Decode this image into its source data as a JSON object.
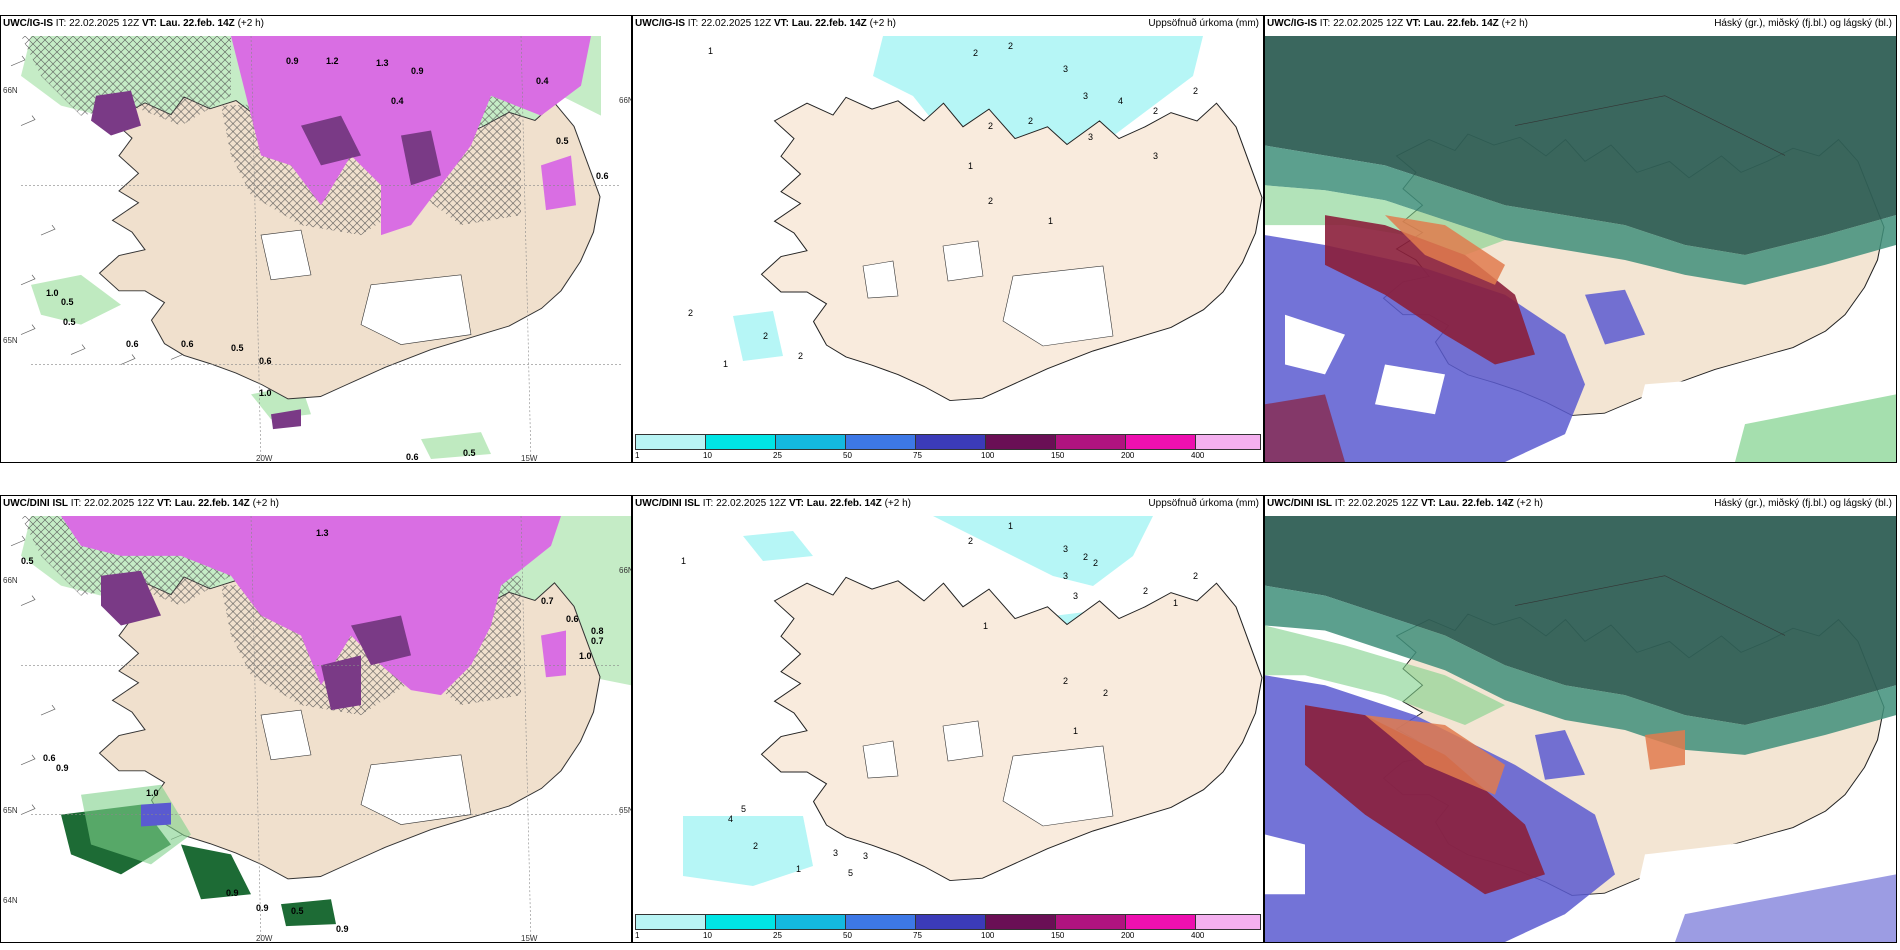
{
  "colors": {
    "land": "#f3e5d3",
    "land_precip": "#efd9c5",
    "purple": "#d96ee3",
    "dark_purple": "#7a3a86",
    "green_light": "#bfeac0",
    "green_mid": "#7fd18b",
    "green_dark": "#1d6b35",
    "cyan": "#b6f6f6",
    "teal_dark": "#2f5f55",
    "teal_mid": "#3f8f7a",
    "blue": "#5a5ad0",
    "red": "#8b1f3b",
    "orange": "#e07b4e"
  },
  "panels": [
    {
      "model": "UWC/IG-IS",
      "it": "IT: 22.02.2025 12Z",
      "vt_label": "VT:",
      "vt": "Lau. 22.feb. 14Z",
      "offset": "(+2 h)",
      "right_title": ""
    },
    {
      "model": "UWC/IG-IS",
      "it": "IT: 22.02.2025 12Z",
      "vt_label": "VT:",
      "vt": "Lau. 22.feb. 14Z",
      "offset": "(+2 h)",
      "right_title": "Uppsöfnuð úrkoma (mm)"
    },
    {
      "model": "UWC/IG-IS",
      "it": "IT: 22.02.2025 12Z",
      "vt_label": "VT:",
      "vt": "Lau. 22.feb. 14Z",
      "offset": "(+2 h)",
      "right_title": "Háský (gr.), miðský (fj.bl.) og lágský (bl.)"
    },
    {
      "model": "UWC/DINI ISL",
      "it": "IT: 22.02.2025 12Z",
      "vt_label": "VT:",
      "vt": "Lau. 22.feb. 14Z",
      "offset": "(+2 h)",
      "right_title": ""
    },
    {
      "model": "UWC/DINI ISL",
      "it": "IT: 22.02.2025 12Z",
      "vt_label": "VT:",
      "vt": "Lau. 22.feb. 14Z",
      "offset": "(+2 h)",
      "right_title": "Uppsöfnuð úrkoma (mm)"
    },
    {
      "model": "UWC/DINI ISL",
      "it": "IT: 22.02.2025 12Z",
      "vt_label": "VT:",
      "vt": "Lau. 22.feb. 14Z",
      "offset": "(+2 h)",
      "right_title": "Háský (gr.), miðský (fj.bl.) og lágský (bl.)"
    }
  ],
  "axis_labels": {
    "lon_a": "20W",
    "lon_b": "15W",
    "lat_a": "66N",
    "lat_b": "65N",
    "lat_c": "64N"
  },
  "colorbar": {
    "ticks": [
      "1",
      "10",
      "25",
      "50",
      "75",
      "100",
      "150",
      "200",
      "400"
    ],
    "colors": [
      "#b8f4f4",
      "#00e5e5",
      "#14b9e0",
      "#3d78e6",
      "#3b3bb8",
      "#6a0f55",
      "#b0137f",
      "#ee10b0",
      "#f4b0ef"
    ]
  },
  "top_left_values": [
    "0.9",
    "1.2",
    "1.3",
    "0.9",
    "0.4",
    "0.4",
    "0.5",
    "0.6",
    "1.0",
    "0.5",
    "0.5",
    "0.6",
    "0.6",
    "0.5",
    "0.6",
    "1.0",
    "0.6",
    "0.5"
  ],
  "top_mid_values": [
    "1",
    "2",
    "2",
    "3",
    "3",
    "4",
    "2",
    "2",
    "3",
    "2",
    "3",
    "2",
    "1",
    "2",
    "1",
    "2",
    "2",
    "2",
    "1"
  ],
  "bottom_left_values": [
    "0.5",
    "1.3",
    "0.7",
    "0.8",
    "0.7",
    "1.0",
    "0.6",
    "0.6",
    "0.9",
    "1.0",
    "0.9",
    "0.9",
    "0.9",
    "0.5"
  ],
  "bottom_mid_values": [
    "1",
    "2",
    "3",
    "2",
    "3",
    "3",
    "1",
    "2",
    "2",
    "2",
    "1",
    "1",
    "1",
    "2",
    "2",
    "4",
    "5",
    "2",
    "3",
    "3",
    "5",
    "1"
  ]
}
